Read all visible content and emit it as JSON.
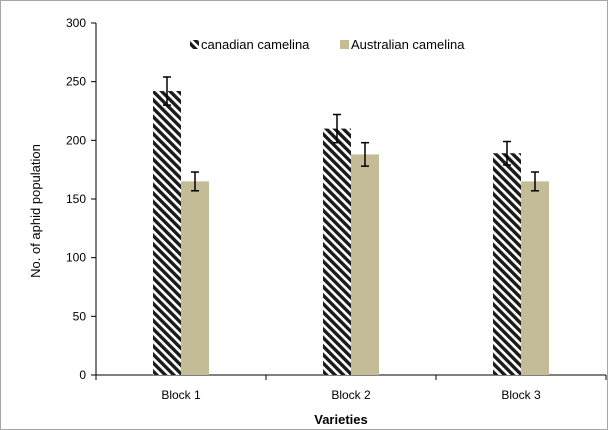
{
  "chart_data": {
    "type": "bar",
    "title": "",
    "xlabel": "Varieties",
    "ylabel": "No. of aphid population",
    "ylim": [
      0,
      300
    ],
    "yticks": [
      0,
      50,
      100,
      150,
      200,
      250,
      300
    ],
    "categories": [
      "Block 1",
      "Block 2",
      "Block 3"
    ],
    "series": [
      {
        "name": "canadian camelina",
        "values": [
          242,
          210,
          189
        ],
        "errors": [
          12,
          12,
          10
        ],
        "color": "#1a1a1a",
        "pattern": "diagonal-stripes"
      },
      {
        "name": "Australian camelina",
        "values": [
          165,
          188,
          165
        ],
        "errors": [
          8,
          10,
          8
        ],
        "color": "#c4bc96",
        "pattern": "solid"
      }
    ],
    "legend": "top-center",
    "grid": false
  }
}
